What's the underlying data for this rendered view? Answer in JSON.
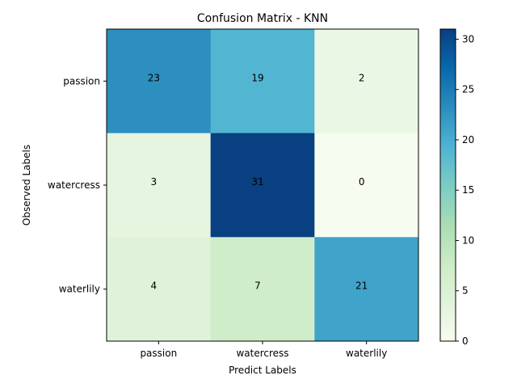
{
  "chart_data": {
    "type": "heatmap",
    "title": "Confusion Matrix - KNN",
    "xlabel": "Predict Labels",
    "ylabel": "Observed Labels",
    "x_categories": [
      "passion",
      "watercress",
      "waterlily"
    ],
    "y_categories": [
      "passion",
      "watercress",
      "waterlily"
    ],
    "values": [
      [
        23,
        19,
        2
      ],
      [
        3,
        31,
        0
      ],
      [
        4,
        7,
        21
      ]
    ],
    "colormap": "GnBu",
    "colorbar": {
      "range": [
        0,
        31
      ],
      "ticks": [
        0,
        5,
        10,
        15,
        20,
        25,
        30
      ]
    }
  }
}
